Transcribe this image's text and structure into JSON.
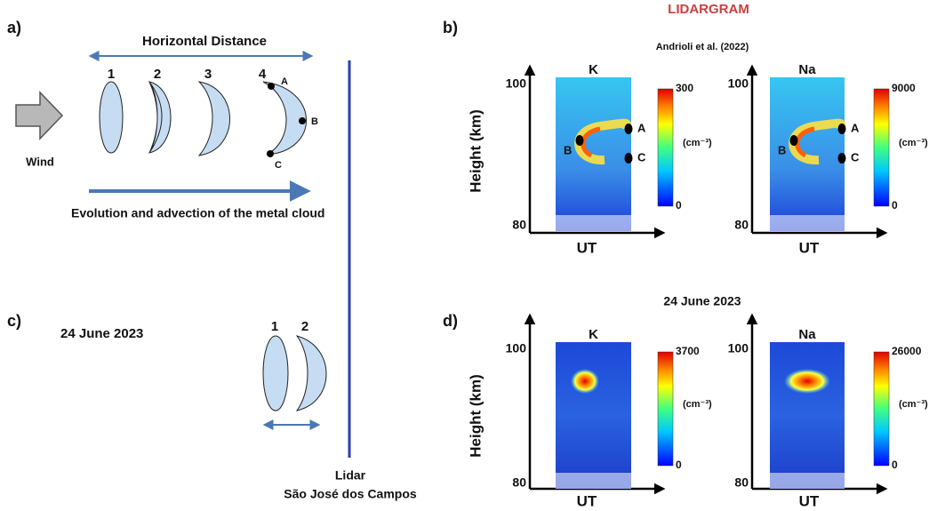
{
  "title": "LIDARGRAM",
  "a": {
    "label": "a)",
    "horizontal_distance": "Horizontal Distance",
    "stages": [
      "1",
      "2",
      "3",
      "4"
    ],
    "points": [
      "A",
      "B",
      "C"
    ],
    "wind": "Wind",
    "evolution": "Evolution and advection of the metal cloud"
  },
  "b": {
    "label": "b)",
    "source": "Andrioli et al. (2022)",
    "y_label": "Height (km)",
    "x_label": "UT",
    "y_top": 100,
    "y_bottom": 80,
    "plots": [
      {
        "species": "K",
        "cbar_max": 300,
        "cbar_min": 0,
        "unit": "(cm⁻³)",
        "points": [
          "A",
          "B",
          "C"
        ]
      },
      {
        "species": "Na",
        "cbar_max": 9000,
        "cbar_min": 0,
        "unit": "(cm⁻³)",
        "points": [
          "A",
          "B",
          "C"
        ]
      }
    ]
  },
  "c": {
    "label": "c)",
    "date": "24 June 2023",
    "stages": [
      "1",
      "2"
    ],
    "lidar": "Lidar",
    "location": "São José dos Campos"
  },
  "d": {
    "label": "d)",
    "date": "24 June 2023",
    "y_label": "Height (km)",
    "x_label": "UT",
    "y_top": 100,
    "y_bottom": 80,
    "plots": [
      {
        "species": "K",
        "cbar_max": 3700,
        "cbar_min": 0,
        "unit": "(cm⁻³)"
      },
      {
        "species": "Na",
        "cbar_max": 26000,
        "cbar_min": 0,
        "unit": "(cm⁻³)"
      }
    ]
  }
}
